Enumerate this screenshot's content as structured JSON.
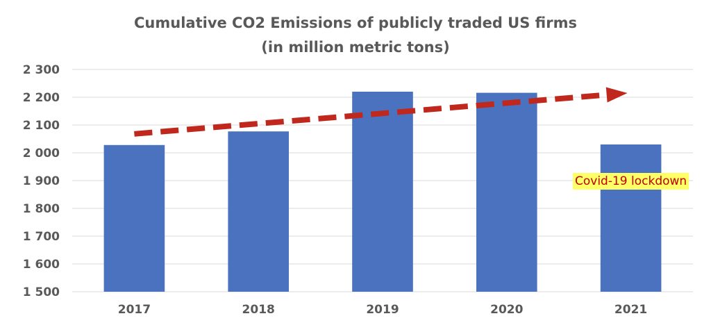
{
  "chart_data": {
    "type": "bar",
    "title": "Cumulative CO2 Emissions of publicly traded US firms",
    "subtitle": "(in million metric tons)",
    "xlabel": "",
    "ylabel": "",
    "categories": [
      "2017",
      "2018",
      "2019",
      "2020",
      "2021"
    ],
    "values": [
      2028,
      2077,
      2220,
      2216,
      2030
    ],
    "ylim": [
      1500,
      2300
    ],
    "yticks": [
      1500,
      1600,
      1700,
      1800,
      1900,
      2000,
      2100,
      2200,
      2300
    ],
    "ytick_labels": [
      "1 500",
      "1 600",
      "1 700",
      "1 800",
      "1 900",
      "2 000",
      "2 100",
      "2 200",
      "2 300"
    ],
    "grid": true,
    "legend": "none",
    "trend_arrow": {
      "from": {
        "x": "2017",
        "y": 2068
      },
      "to": {
        "x": "2021",
        "y": 2215
      }
    },
    "annotation": {
      "text": "Covid-19 lockdown",
      "category": "2021",
      "y": 1900
    },
    "colors": {
      "bar": "#4a72bf",
      "arrow": "#c0281e",
      "grid": "#d9d9d9",
      "text": "#595959",
      "annotation_bg": "#ffff66",
      "annotation_text": "#c00000"
    }
  }
}
